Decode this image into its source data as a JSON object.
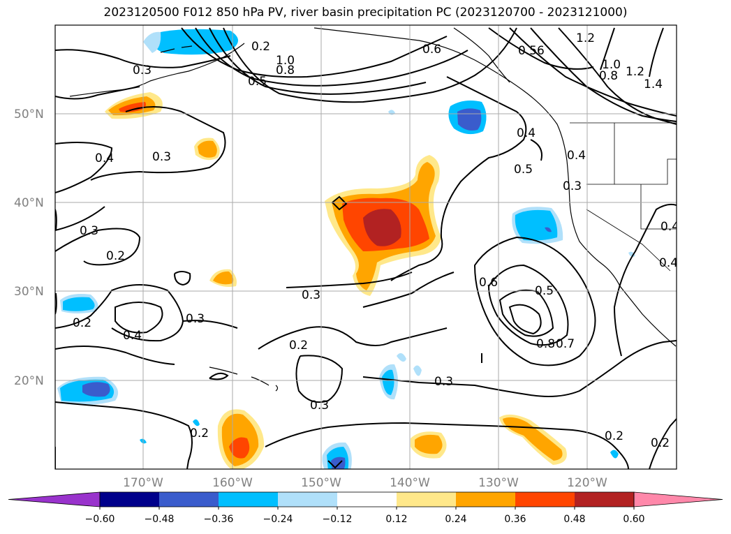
{
  "title": "2023120500 F012 850 hPa PV, river basin precipitation PC (2023120700 - 2023121000)",
  "map": {
    "lat_labels": [
      "50°N",
      "40°N",
      "30°N",
      "20°N"
    ],
    "lon_labels": [
      "170°W",
      "160°W",
      "150°W",
      "140°W",
      "130°W",
      "120°W"
    ],
    "gridline_color": "#aaaaaa"
  },
  "contour_labels": [
    "0.3",
    "0.5",
    "0.8",
    "1.0",
    "0.2",
    "0.6",
    "1.2",
    "0.56",
    "1.0",
    "0.8",
    "1.2",
    "1.4",
    "0.4",
    "0.3",
    "0.4",
    "0.5",
    "0.4",
    "0.3",
    "0.3",
    "0.2",
    "0.4",
    "0.3",
    "0.2",
    "0.4",
    "0.3",
    "0.2",
    "0.6",
    "0.5",
    "0.8",
    "0.7",
    "0.3",
    "0.3",
    "0.2",
    "0.2",
    "0.2",
    "0.4"
  ],
  "colorbar": {
    "ticks": [
      "−0.60",
      "−0.48",
      "−0.36",
      "−0.24",
      "−0.12",
      "0.12",
      "0.24",
      "0.36",
      "0.48",
      "0.60"
    ],
    "colors": [
      "#9933cc",
      "#00008b",
      "#3a5ccc",
      "#00bfff",
      "#b0e0fa",
      "#ffffff",
      "#ffe88a",
      "#ffa500",
      "#ff4500",
      "#b22222",
      "#ff88aa"
    ]
  }
}
